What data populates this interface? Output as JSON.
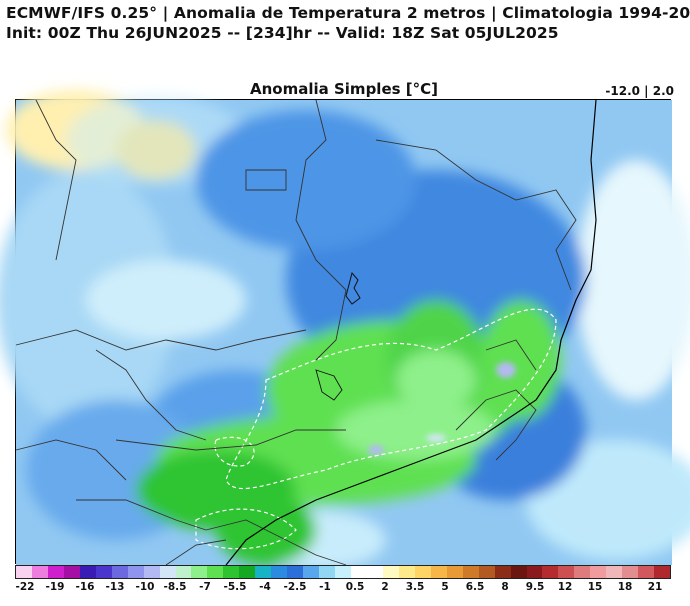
{
  "header": {
    "line1": "ECMWF/IFS 0.25° | Anomalia de Temperatura 2 metros | Climatologia 1994-20",
    "line2": "Init: 00Z Thu 26JUN2025 -- [234]hr -- Valid: 18Z Sat 05JUL2025"
  },
  "map": {
    "title": "Anomalia Simples [°C]",
    "minmax": "-12.0 | 2.0"
  },
  "colorbar": {
    "colors": [
      "#f9d2f0",
      "#ee7de0",
      "#cf1fcc",
      "#a60fa4",
      "#3a1bb4",
      "#4a36ce",
      "#6c68e0",
      "#8f94ec",
      "#b3b9f2",
      "#d3e6f7",
      "#bff2cc",
      "#8ef08a",
      "#5fe051",
      "#2ec431",
      "#14a823",
      "#17b3c4",
      "#2c8be0",
      "#2d6fd9",
      "#58a6ec",
      "#91d6f3",
      "#c6f0fb",
      "#ffffff",
      "#ffffff",
      "#fff9c2",
      "#ffe98a",
      "#ffd466",
      "#f6b648",
      "#e79a35",
      "#cf7a28",
      "#b25a22",
      "#8c2e17",
      "#6b1610",
      "#8a1a1e",
      "#b52c2f",
      "#cc4f52",
      "#dd7b7d",
      "#f09c9e",
      "#f0b7b8",
      "#e28e91",
      "#d1595e",
      "#b0272d"
    ],
    "labels": [
      "-22",
      "-19",
      "-16",
      "-13",
      "-10",
      "-8.5",
      "-7",
      "-5.5",
      "-4",
      "-2.5",
      "-1",
      "0.5",
      "2",
      "3.5",
      "5",
      "6.5",
      "8",
      "9.5",
      "12",
      "15",
      "18",
      "21"
    ]
  }
}
